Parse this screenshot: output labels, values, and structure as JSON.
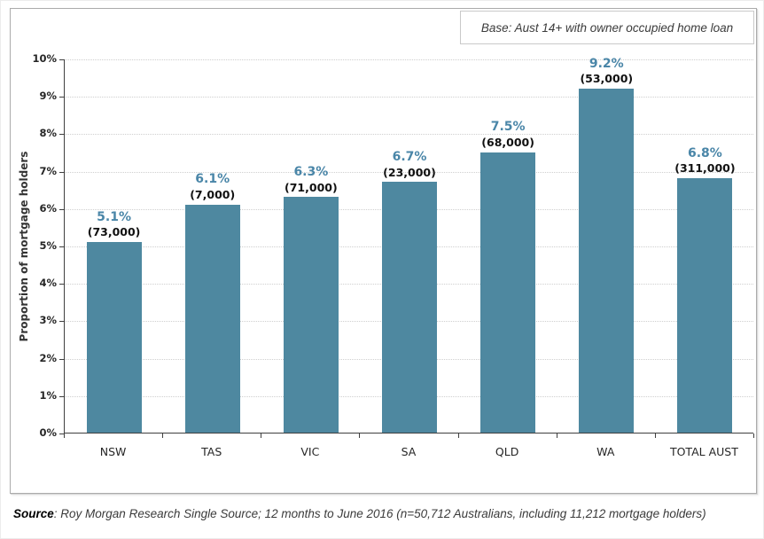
{
  "header": {
    "base_note": "Base: Aust 14+ with owner occupied home loan"
  },
  "chart_data": {
    "type": "bar",
    "title": "",
    "xlabel": "",
    "ylabel": "Proportion of mortgage holders",
    "categories": [
      "NSW",
      "TAS",
      "VIC",
      "SA",
      "QLD",
      "WA",
      "TOTAL AUST"
    ],
    "values": [
      5.1,
      6.1,
      6.3,
      6.7,
      7.5,
      9.2,
      6.8
    ],
    "value_labels": [
      "5.1%",
      "6.1%",
      "6.3%",
      "6.7%",
      "7.5%",
      "9.2%",
      "6.8%"
    ],
    "count_labels": [
      "(73,000)",
      "(7,000)",
      "(71,000)",
      "(23,000)",
      "(68,000)",
      "(53,000)",
      "(311,000)"
    ],
    "ylim": [
      0,
      10
    ],
    "ytick_step": 1,
    "ytick_labels": [
      "0%",
      "1%",
      "2%",
      "3%",
      "4%",
      "5%",
      "6%",
      "7%",
      "8%",
      "9%",
      "10%"
    ],
    "grid": "horizontal-dotted",
    "legend": "none",
    "colors": {
      "bar_fill": "#4e88a0",
      "pct_label": "#4a86a8",
      "count_label": "#111111",
      "axis": "#3f3f3f",
      "gridline": "#cfcfcf"
    }
  },
  "footer": {
    "source_label": "Source",
    "source_text": ": Roy Morgan Research Single Source; 12 months to June 2016 (n=50,712 Australians, including 11,212 mortgage holders)"
  }
}
